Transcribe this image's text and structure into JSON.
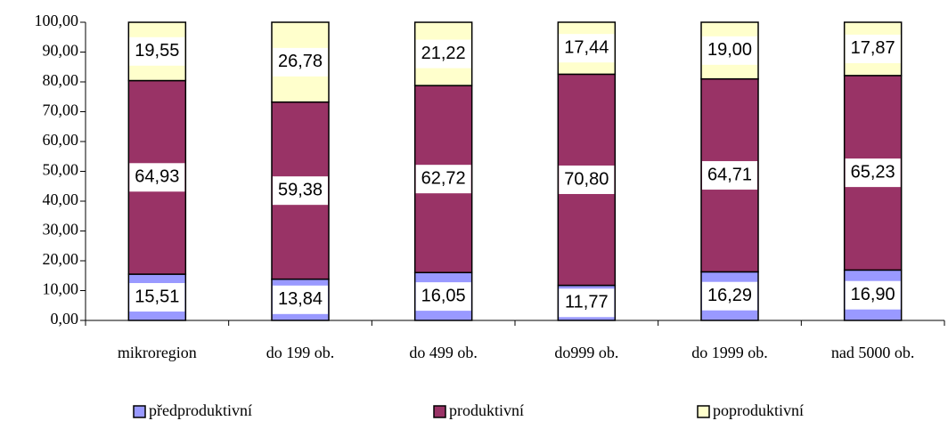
{
  "chart_data": {
    "type": "stacked_bar",
    "categories": [
      "mikroregion",
      "do 199 ob.",
      "do 499 ob.",
      "do999 ob.",
      "do 1999 ob.",
      "nad 5000 ob."
    ],
    "series": [
      {
        "name": "předproduktivní",
        "color": "#9999ff",
        "values": [
          15.51,
          13.84,
          16.05,
          11.77,
          16.29,
          16.9
        ],
        "value_labels": [
          "15,51",
          "13,84",
          "16,05",
          "11,77",
          "16,29",
          "16,90"
        ]
      },
      {
        "name": "produktivní",
        "color": "#993366",
        "values": [
          64.93,
          59.38,
          62.72,
          70.8,
          64.71,
          65.23
        ],
        "value_labels": [
          "64,93",
          "59,38",
          "62,72",
          "70,80",
          "64,71",
          "65,23"
        ]
      },
      {
        "name": "poproduktivní",
        "color": "#ffffcc",
        "values": [
          19.55,
          26.78,
          21.22,
          17.44,
          19.0,
          17.87
        ],
        "value_labels": [
          "19,55",
          "26,78",
          "21,22",
          "17,44",
          "19,00",
          "17,87"
        ]
      }
    ],
    "ylim": [
      0,
      100
    ],
    "yticks": [
      {
        "value": 0,
        "label": "0,00"
      },
      {
        "value": 10,
        "label": "10,00"
      },
      {
        "value": 20,
        "label": "20,00"
      },
      {
        "value": 30,
        "label": "30,00"
      },
      {
        "value": 40,
        "label": "40,00"
      },
      {
        "value": 50,
        "label": "50,00"
      },
      {
        "value": 60,
        "label": "60,00"
      },
      {
        "value": 70,
        "label": "70,00"
      },
      {
        "value": 80,
        "label": "80,00"
      },
      {
        "value": 90,
        "label": "90,00"
      },
      {
        "value": 100,
        "label": "100,00"
      }
    ],
    "legend": "bottom"
  }
}
